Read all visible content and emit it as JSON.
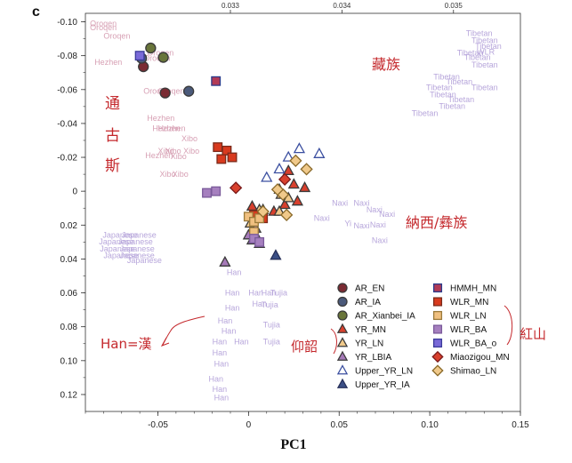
{
  "panel_label": "c",
  "chart_data": {
    "type": "scatter",
    "xlabel": "PC1",
    "ylabel": "",
    "xlim": [
      -0.09,
      0.15
    ],
    "ylim": [
      0.13,
      -0.105
    ],
    "y_inverted": true,
    "grid": false,
    "legend_position": "bottom-right",
    "x_ticks": [
      {
        "v": -0.05,
        "label": "-0.05"
      },
      {
        "v": 0,
        "label": "0"
      },
      {
        "v": 0.05,
        "label": "0.05"
      },
      {
        "v": 0.1,
        "label": "0.10"
      },
      {
        "v": 0.15,
        "label": "0.15"
      }
    ],
    "y_ticks": [
      {
        "v": -0.1,
        "label": "-0.10"
      },
      {
        "v": -0.08,
        "label": "-0.08"
      },
      {
        "v": -0.06,
        "label": "-0.06"
      },
      {
        "v": -0.04,
        "label": "-0.04"
      },
      {
        "v": -0.02,
        "label": "-0.02"
      },
      {
        "v": 0,
        "label": "0"
      },
      {
        "v": 0.02,
        "label": "0.02"
      },
      {
        "v": 0.04,
        "label": "0.04"
      },
      {
        "v": 0.06,
        "label": "0.06"
      },
      {
        "v": 0.08,
        "label": "0.08"
      },
      {
        "v": 0.1,
        "label": "0.10"
      },
      {
        "v": 0.12,
        "label": "0.12"
      }
    ],
    "top_ticks": [
      {
        "v": 0.033,
        "label": "0.033"
      },
      {
        "v": 0.034,
        "label": "0.034"
      },
      {
        "v": 0.035,
        "label": "0.035"
      }
    ],
    "top_xlim": [
      0.0317,
      0.0356
    ],
    "modern_labels": [
      {
        "text": "Oroqen",
        "x": -0.0875,
        "y": -0.0975,
        "color": "#d7a0b4"
      },
      {
        "text": "Oroqen",
        "x": -0.0875,
        "y": -0.095,
        "color": "#d7a0b4"
      },
      {
        "text": "Oroqen",
        "x": -0.08,
        "y": -0.09,
        "color": "#d7a0b4"
      },
      {
        "text": "Oroqen",
        "x": -0.056,
        "y": -0.08,
        "color": "#d7a0b4"
      },
      {
        "text": "Oroqen",
        "x": -0.058,
        "y": -0.077,
        "color": "#d7a0b4"
      },
      {
        "text": "Hezhen",
        "x": -0.085,
        "y": -0.0745,
        "color": "#d7a0b4"
      },
      {
        "text": "Oroqen",
        "x": -0.058,
        "y": -0.0575,
        "color": "#d7a0b4"
      },
      {
        "text": "Oroqen",
        "x": -0.05,
        "y": -0.0575,
        "color": "#d7a0b4"
      },
      {
        "text": "Hezhen",
        "x": -0.056,
        "y": -0.0415,
        "color": "#d7a0b4"
      },
      {
        "text": "Hezhen",
        "x": -0.053,
        "y": -0.0355,
        "color": "#d7a0b4"
      },
      {
        "text": "Hezhen",
        "x": -0.05,
        "y": -0.0355,
        "color": "#d7a0b4"
      },
      {
        "text": "Xibo",
        "x": -0.037,
        "y": -0.0295,
        "color": "#d7a0b4"
      },
      {
        "text": "Hezhen",
        "x": -0.057,
        "y": -0.0195,
        "color": "#d7a0b4"
      },
      {
        "text": "Xibo",
        "x": -0.05,
        "y": -0.022,
        "color": "#d7a0b4"
      },
      {
        "text": "Xibo Xibo",
        "x": -0.046,
        "y": -0.022,
        "color": "#d7a0b4"
      },
      {
        "text": "Xibo",
        "x": -0.043,
        "y": -0.019,
        "color": "#d7a0b4"
      },
      {
        "text": "Xibo",
        "x": -0.042,
        "y": -0.0085,
        "color": "#d7a0b4"
      },
      {
        "text": "Xibo",
        "x": -0.049,
        "y": -0.0085,
        "color": "#d7a0b4"
      },
      {
        "text": "Tibetan",
        "x": 0.12,
        "y": -0.0915,
        "color": "#b7a6db"
      },
      {
        "text": "Tibetan",
        "x": 0.123,
        "y": -0.0875,
        "color": "#b7a6db"
      },
      {
        "text": "Tibetan",
        "x": 0.125,
        "y": -0.084,
        "color": "#b7a6db"
      },
      {
        "text": "Tibetan",
        "x": 0.115,
        "y": -0.08,
        "color": "#b7a6db"
      },
      {
        "text": "WLR",
        "x": 0.126,
        "y": -0.0805,
        "color": "#b7a6db"
      },
      {
        "text": "Tibetan",
        "x": 0.119,
        "y": -0.0775,
        "color": "#b7a6db"
      },
      {
        "text": "Tibetan",
        "x": 0.123,
        "y": -0.073,
        "color": "#b7a6db"
      },
      {
        "text": "Tibetan",
        "x": 0.102,
        "y": -0.066,
        "color": "#b7a6db"
      },
      {
        "text": "Tibetan",
        "x": 0.109,
        "y": -0.063,
        "color": "#b7a6db"
      },
      {
        "text": "Tibetan",
        "x": 0.098,
        "y": -0.0595,
        "color": "#b7a6db"
      },
      {
        "text": "Tibetan",
        "x": 0.123,
        "y": -0.0595,
        "color": "#b7a6db"
      },
      {
        "text": "Tibetan",
        "x": 0.1,
        "y": -0.0555,
        "color": "#b7a6db"
      },
      {
        "text": "Tibetan",
        "x": 0.11,
        "y": -0.0525,
        "color": "#b7a6db"
      },
      {
        "text": "Tibetan",
        "x": 0.105,
        "y": -0.0485,
        "color": "#b7a6db"
      },
      {
        "text": "Tibetan",
        "x": 0.09,
        "y": -0.0445,
        "color": "#b7a6db"
      },
      {
        "text": "Naxi",
        "x": 0.046,
        "y": 0.0085,
        "color": "#b7a6db"
      },
      {
        "text": "Naxi",
        "x": 0.058,
        "y": 0.0085,
        "color": "#b7a6db"
      },
      {
        "text": "Naxi",
        "x": 0.065,
        "y": 0.0125,
        "color": "#b7a6db"
      },
      {
        "text": "Naxi",
        "x": 0.072,
        "y": 0.015,
        "color": "#b7a6db"
      },
      {
        "text": "Naxi",
        "x": 0.036,
        "y": 0.0175,
        "color": "#b7a6db"
      },
      {
        "text": "Yi",
        "x": 0.053,
        "y": 0.0205,
        "color": "#b7a6db"
      },
      {
        "text": "Naxi",
        "x": 0.067,
        "y": 0.0215,
        "color": "#b7a6db"
      },
      {
        "text": "Naxi",
        "x": 0.058,
        "y": 0.022,
        "color": "#b7a6db"
      },
      {
        "text": "Naxi",
        "x": 0.068,
        "y": 0.0305,
        "color": "#b7a6db"
      },
      {
        "text": "Japanese",
        "x": -0.0805,
        "y": 0.0275,
        "color": "#b7a6db"
      },
      {
        "text": "Japanese",
        "x": -0.07,
        "y": 0.0275,
        "color": "#b7a6db"
      },
      {
        "text": "Japanese",
        "x": -0.0825,
        "y": 0.0315,
        "color": "#b7a6db"
      },
      {
        "text": "Japanese",
        "x": -0.072,
        "y": 0.0315,
        "color": "#b7a6db"
      },
      {
        "text": "Japanese",
        "x": -0.082,
        "y": 0.0355,
        "color": "#b7a6db"
      },
      {
        "text": "Japanese",
        "x": -0.071,
        "y": 0.0355,
        "color": "#b7a6db"
      },
      {
        "text": "Japanese",
        "x": -0.08,
        "y": 0.0395,
        "color": "#b7a6db"
      },
      {
        "text": "Japanese",
        "x": -0.071,
        "y": 0.0395,
        "color": "#b7a6db"
      },
      {
        "text": "Japanese",
        "x": -0.067,
        "y": 0.0425,
        "color": "#b7a6db"
      },
      {
        "text": "Han",
        "x": -0.012,
        "y": 0.0495,
        "color": "#b7a6db"
      },
      {
        "text": "Han",
        "x": -0.013,
        "y": 0.0615,
        "color": "#b7a6db"
      },
      {
        "text": "Han",
        "x": 0.0,
        "y": 0.0615,
        "color": "#b7a6db"
      },
      {
        "text": "Han",
        "x": 0.007,
        "y": 0.0615,
        "color": "#b7a6db"
      },
      {
        "text": "Han",
        "x": 0.002,
        "y": 0.068,
        "color": "#b7a6db"
      },
      {
        "text": "Han",
        "x": -0.013,
        "y": 0.0705,
        "color": "#b7a6db"
      },
      {
        "text": "Tujia",
        "x": 0.012,
        "y": 0.0615,
        "color": "#b7a6db"
      },
      {
        "text": "Tujia",
        "x": 0.007,
        "y": 0.0685,
        "color": "#b7a6db"
      },
      {
        "text": "Han",
        "x": -0.017,
        "y": 0.078,
        "color": "#b7a6db"
      },
      {
        "text": "Han",
        "x": -0.015,
        "y": 0.084,
        "color": "#b7a6db"
      },
      {
        "text": "Tujia",
        "x": 0.008,
        "y": 0.0805,
        "color": "#b7a6db"
      },
      {
        "text": "Han",
        "x": -0.008,
        "y": 0.0905,
        "color": "#b7a6db"
      },
      {
        "text": "Han",
        "x": -0.02,
        "y": 0.0905,
        "color": "#b7a6db"
      },
      {
        "text": "Tujia",
        "x": 0.008,
        "y": 0.0905,
        "color": "#b7a6db"
      },
      {
        "text": "Han",
        "x": -0.02,
        "y": 0.097,
        "color": "#b7a6db"
      },
      {
        "text": "Han",
        "x": -0.019,
        "y": 0.1035,
        "color": "#b7a6db"
      },
      {
        "text": "Han",
        "x": -0.022,
        "y": 0.1125,
        "color": "#b7a6db"
      },
      {
        "text": "Han",
        "x": -0.02,
        "y": 0.1185,
        "color": "#b7a6db"
      },
      {
        "text": "Han",
        "x": -0.019,
        "y": 0.1235,
        "color": "#b7a6db"
      }
    ],
    "series": [
      {
        "name": "AR_EN",
        "marker": "circle",
        "fill": "#7a2b33",
        "stroke": "#3a3a3a",
        "points": [
          [
            -0.058,
            -0.0735
          ],
          [
            -0.046,
            -0.058
          ]
        ]
      },
      {
        "name": "AR_IA",
        "marker": "circle",
        "fill": "#4b5a7a",
        "stroke": "#3a3a3a",
        "points": [
          [
            -0.059,
            -0.0785
          ],
          [
            -0.033,
            -0.059
          ]
        ]
      },
      {
        "name": "AR_Xianbei_IA",
        "marker": "circle",
        "fill": "#69753a",
        "stroke": "#3a3a3a",
        "points": [
          [
            -0.054,
            -0.0845
          ],
          [
            -0.047,
            -0.079
          ]
        ]
      },
      {
        "name": "YR_MN",
        "marker": "triangle",
        "fill": "#d8402d",
        "stroke": "#3a3a3a",
        "points": [
          [
            0.022,
            -0.012
          ],
          [
            0.025,
            -0.004
          ],
          [
            0.017,
            -0.001
          ],
          [
            0.031,
            -0.002
          ],
          [
            0.014,
            0.012
          ],
          [
            0.008,
            0.011
          ],
          [
            0.02,
            0.008
          ],
          [
            0.027,
            0.006
          ],
          [
            0.002,
            0.009
          ],
          [
            0.006,
            0.014
          ]
        ]
      },
      {
        "name": "YR_LN",
        "marker": "triangle",
        "fill": "#f0c98a",
        "stroke": "#3a3a3a",
        "points": [
          [
            0.018,
            0.002
          ],
          [
            0.022,
            0.004
          ],
          [
            0.006,
            0.011
          ],
          [
            0.001,
            0.019
          ],
          [
            0.017,
            0.012
          ],
          [
            0.005,
            0.028
          ]
        ]
      },
      {
        "name": "YR_LBIA",
        "marker": "triangle",
        "fill": "#a67ab8",
        "stroke": "#3a3a3a",
        "points": [
          [
            -0.013,
            0.042
          ],
          [
            0.004,
            0.022
          ],
          [
            0.002,
            0.029
          ],
          [
            0.006,
            0.031
          ],
          [
            0.0,
            0.026
          ]
        ]
      },
      {
        "name": "Upper_YR_LN",
        "marker": "triangle",
        "fill": "#ffffff",
        "stroke": "#3b4fa0",
        "points": [
          [
            0.022,
            -0.02
          ],
          [
            0.028,
            -0.025
          ],
          [
            0.039,
            -0.022
          ],
          [
            0.017,
            -0.013
          ],
          [
            0.01,
            -0.008
          ]
        ]
      },
      {
        "name": "Upper_YR_IA",
        "marker": "triangle",
        "fill": "#3b4f86",
        "stroke": "#27305a",
        "points": [
          [
            0.015,
            0.038
          ]
        ]
      },
      {
        "name": "HMMH_MN",
        "marker": "square",
        "fill": "#b23a56",
        "stroke": "#2a3a8a",
        "points": [
          [
            -0.018,
            -0.065
          ]
        ]
      },
      {
        "name": "WLR_MN",
        "marker": "square",
        "fill": "#d83a1e",
        "stroke": "#7a2a1a",
        "points": [
          [
            -0.017,
            -0.026
          ],
          [
            -0.012,
            -0.024
          ],
          [
            -0.015,
            -0.019
          ],
          [
            -0.009,
            -0.02
          ],
          [
            0.003,
            0.014
          ],
          [
            0.008,
            0.016
          ]
        ]
      },
      {
        "name": "WLR_LN",
        "marker": "square",
        "fill": "#f0c080",
        "stroke": "#9a7a3a",
        "points": [
          [
            0.0,
            0.015
          ],
          [
            0.003,
            0.018
          ],
          [
            0.006,
            0.016
          ],
          [
            0.003,
            0.024
          ]
        ]
      },
      {
        "name": "WLR_BA",
        "marker": "square",
        "fill": "#a680bf",
        "stroke": "#7a5a9a",
        "points": [
          [
            -0.023,
            0.001
          ],
          [
            -0.018,
            0.0
          ],
          [
            0.003,
            0.028
          ],
          [
            0.006,
            0.03
          ]
        ]
      },
      {
        "name": "WLR_BA_o",
        "marker": "square",
        "fill": "#7a6ad8",
        "stroke": "#3a3a9a",
        "points": [
          [
            -0.06,
            -0.08
          ]
        ]
      },
      {
        "name": "Miaozigou_MN",
        "marker": "diamond",
        "fill": "#d8402d",
        "stroke": "#7a1a1a",
        "points": [
          [
            -0.007,
            -0.002
          ],
          [
            0.02,
            -0.007
          ]
        ]
      },
      {
        "name": "Shimao_LN",
        "marker": "diamond",
        "fill": "#f0c98a",
        "stroke": "#8a6a2a",
        "points": [
          [
            0.032,
            -0.013
          ],
          [
            0.026,
            -0.018
          ],
          [
            0.019,
            0.002
          ],
          [
            0.016,
            -0.001
          ],
          [
            0.021,
            0.014
          ],
          [
            0.008,
            0.012
          ]
        ]
      }
    ],
    "legend_col1": [
      "AR_EN",
      "AR_IA",
      "AR_Xianbei_IA",
      "YR_MN",
      "YR_LN",
      "YR_LBIA",
      "Upper_YR_LN",
      "Upper_YR_IA"
    ],
    "legend_col2": [
      "HMMH_MN",
      "WLR_MN",
      "WLR_LN",
      "WLR_BA",
      "WLR_BA_o",
      "Miaozigou_MN",
      "Shimao_LN"
    ]
  },
  "annotations": {
    "tonggusi": [
      "通",
      "古",
      "斯"
    ],
    "tibetan": "藏族",
    "naxi_yi": "納西/彝族",
    "han": "Han=漢",
    "yangshao": "仰韶",
    "hongshan": "紅山"
  }
}
